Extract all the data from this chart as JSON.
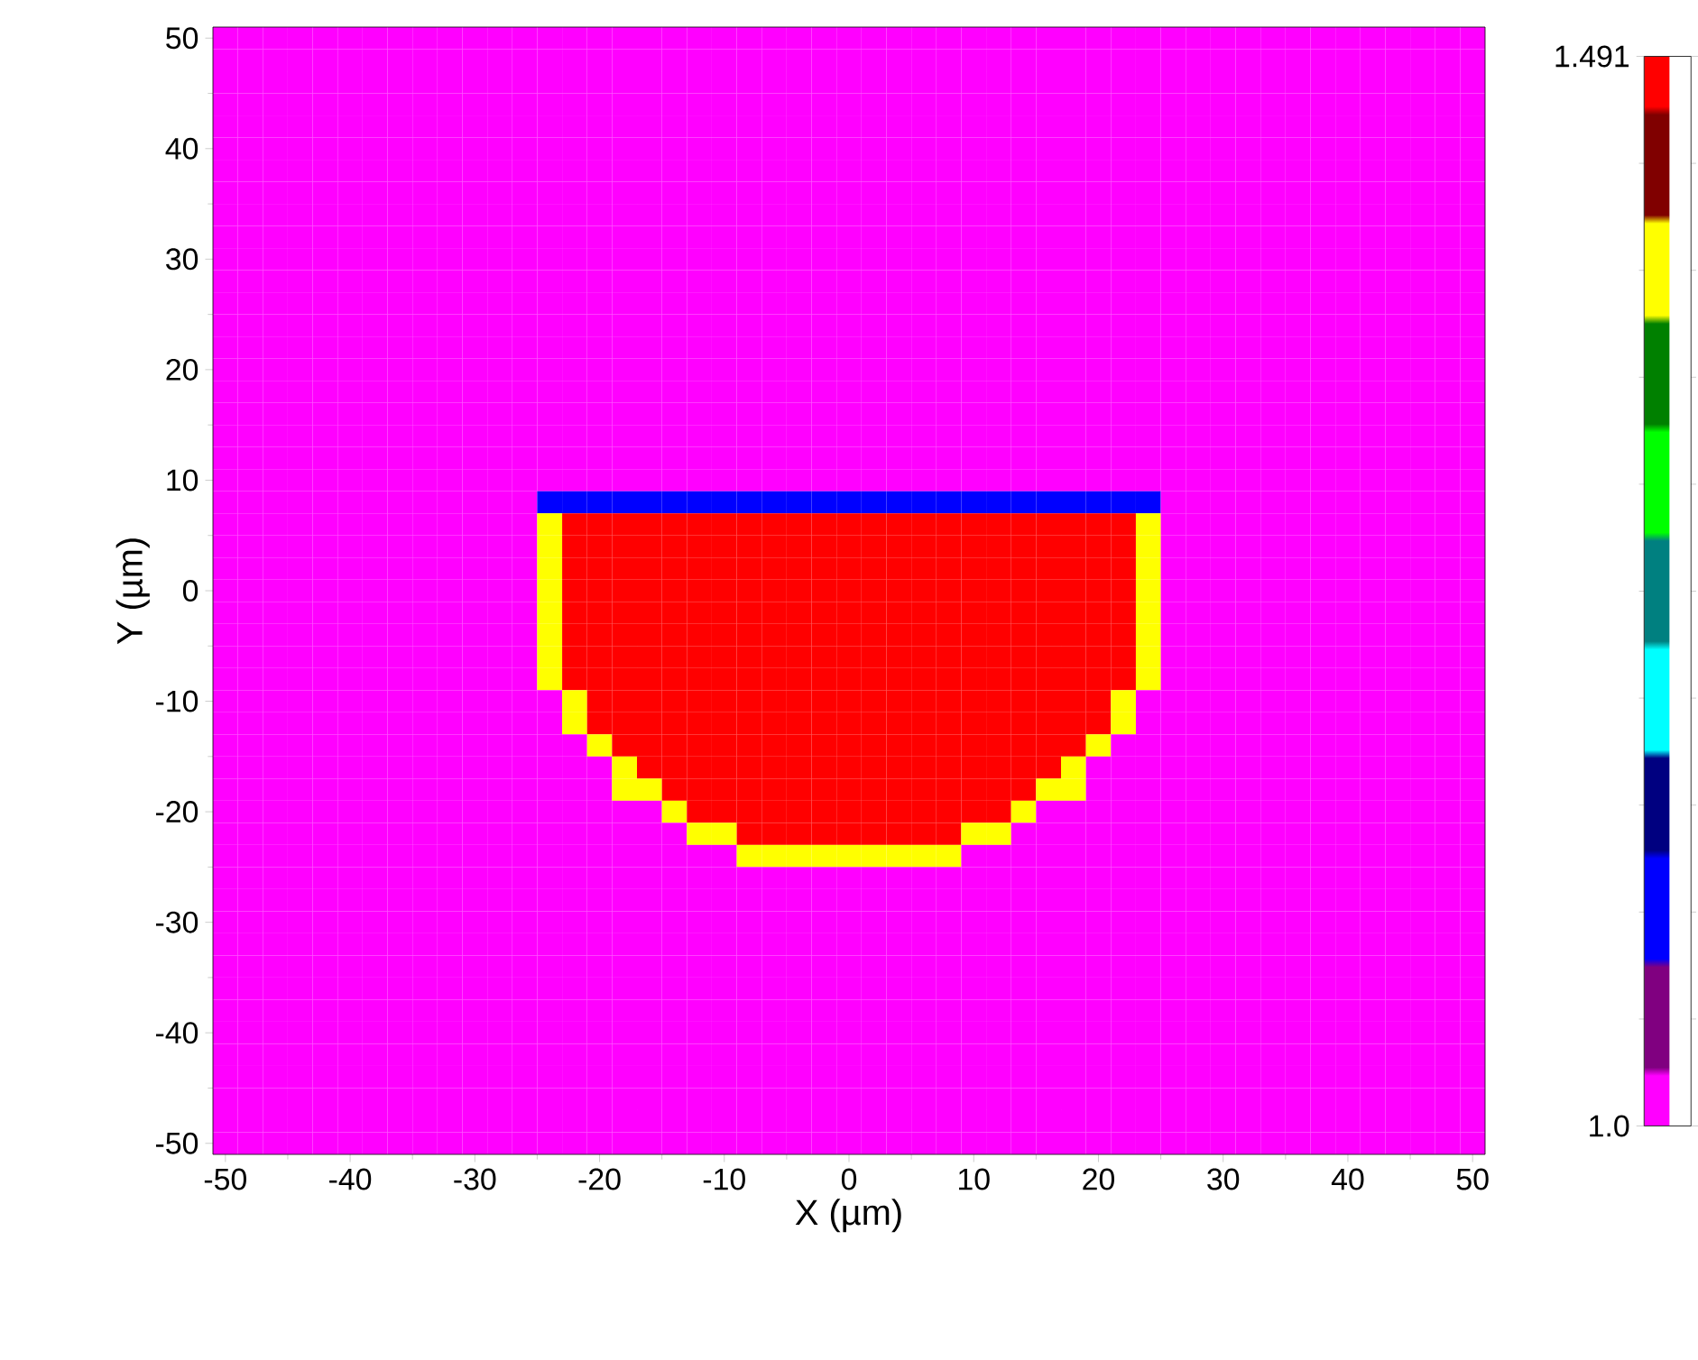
{
  "chart_data": {
    "type": "heatmap",
    "xlabel": "X (µm)",
    "ylabel": "Y (µm)",
    "clim": [
      1.0,
      1.491
    ],
    "cticks": [
      {
        "value": 1.0,
        "label": "1.0"
      },
      1.491
    ],
    "categories": [
      "-50",
      null,
      null,
      null,
      null,
      "-40",
      null,
      null,
      null,
      null,
      "-30",
      null,
      null,
      null,
      null,
      "-20",
      null,
      null,
      null,
      null,
      "-10",
      null,
      null,
      null,
      null,
      "0",
      null,
      null,
      null,
      null,
      "10",
      null,
      null,
      null,
      null,
      "20",
      null,
      null,
      null,
      null,
      "30",
      null,
      null,
      null,
      null,
      "40",
      null,
      null,
      null,
      null,
      "50"
    ],
    "y_categories": [
      "50",
      null,
      null,
      null,
      null,
      "40",
      null,
      null,
      null,
      null,
      "30",
      null,
      null,
      null,
      null,
      "20",
      null,
      null,
      null,
      null,
      "10",
      null,
      null,
      null,
      null,
      "0",
      null,
      null,
      null,
      null,
      "-10",
      null,
      null,
      null,
      null,
      "-20",
      null,
      null,
      null,
      null,
      "-30",
      null,
      null,
      null,
      null,
      "-40",
      null,
      null,
      null,
      null,
      "-50"
    ],
    "cells": [
      [
        1,
        1,
        1,
        1,
        1,
        1,
        1,
        1,
        1,
        1,
        1,
        1,
        1,
        1,
        1,
        1,
        1,
        1,
        1,
        1,
        1,
        1,
        1,
        1,
        1,
        1,
        1,
        1,
        1,
        1,
        1,
        1,
        1,
        1,
        1,
        1,
        1,
        1,
        1,
        1,
        1,
        1,
        1,
        1,
        1,
        1,
        1,
        1,
        1,
        1,
        1
      ],
      [
        1,
        1,
        1,
        1,
        1,
        1,
        1,
        1,
        1,
        1,
        1,
        1,
        1,
        1,
        1,
        1,
        1,
        1,
        1,
        1,
        1,
        1,
        1,
        1,
        1,
        1,
        1,
        1,
        1,
        1,
        1,
        1,
        1,
        1,
        1,
        1,
        1,
        1,
        1,
        1,
        1,
        1,
        1,
        1,
        1,
        1,
        1,
        1,
        1,
        1,
        1
      ],
      [
        1,
        1,
        1,
        1,
        1,
        1,
        1,
        1,
        1,
        1,
        1,
        1,
        1,
        1,
        1,
        1,
        1,
        1,
        1,
        1,
        1,
        1,
        1,
        1,
        1,
        1,
        1,
        1,
        1,
        1,
        1,
        1,
        1,
        1,
        1,
        1,
        1,
        1,
        1,
        1,
        1,
        1,
        1,
        1,
        1,
        1,
        1,
        1,
        1,
        1,
        1
      ],
      [
        1,
        1,
        1,
        1,
        1,
        1,
        1,
        1,
        1,
        1,
        1,
        1,
        1,
        1,
        1,
        1,
        1,
        1,
        1,
        1,
        1,
        1,
        1,
        1,
        1,
        1,
        1,
        1,
        1,
        1,
        1,
        1,
        1,
        1,
        1,
        1,
        1,
        1,
        1,
        1,
        1,
        1,
        1,
        1,
        1,
        1,
        1,
        1,
        1,
        1,
        1
      ],
      [
        1,
        1,
        1,
        1,
        1,
        1,
        1,
        1,
        1,
        1,
        1,
        1,
        1,
        1,
        1,
        1,
        1,
        1,
        1,
        1,
        1,
        1,
        1,
        1,
        1,
        1,
        1,
        1,
        1,
        1,
        1,
        1,
        1,
        1,
        1,
        1,
        1,
        1,
        1,
        1,
        1,
        1,
        1,
        1,
        1,
        1,
        1,
        1,
        1,
        1,
        1
      ],
      [
        1,
        1,
        1,
        1,
        1,
        1,
        1,
        1,
        1,
        1,
        1,
        1,
        1,
        1,
        1,
        1,
        1,
        1,
        1,
        1,
        1,
        1,
        1,
        1,
        1,
        1,
        1,
        1,
        1,
        1,
        1,
        1,
        1,
        1,
        1,
        1,
        1,
        1,
        1,
        1,
        1,
        1,
        1,
        1,
        1,
        1,
        1,
        1,
        1,
        1,
        1
      ],
      [
        1,
        1,
        1,
        1,
        1,
        1,
        1,
        1,
        1,
        1,
        1,
        1,
        1,
        1,
        1,
        1,
        1,
        1,
        1,
        1,
        1,
        1,
        1,
        1,
        1,
        1,
        1,
        1,
        1,
        1,
        1,
        1,
        1,
        1,
        1,
        1,
        1,
        1,
        1,
        1,
        1,
        1,
        1,
        1,
        1,
        1,
        1,
        1,
        1,
        1,
        1
      ],
      [
        1,
        1,
        1,
        1,
        1,
        1,
        1,
        1,
        1,
        1,
        1,
        1,
        1,
        1,
        1,
        1,
        1,
        1,
        1,
        1,
        1,
        1,
        1,
        1,
        1,
        1,
        1,
        1,
        1,
        1,
        1,
        1,
        1,
        1,
        1,
        1,
        1,
        1,
        1,
        1,
        1,
        1,
        1,
        1,
        1,
        1,
        1,
        1,
        1,
        1,
        1
      ],
      [
        1,
        1,
        1,
        1,
        1,
        1,
        1,
        1,
        1,
        1,
        1,
        1,
        1,
        1,
        1,
        1,
        1,
        1,
        1,
        1,
        1,
        1,
        1,
        1,
        1,
        1,
        1,
        1,
        1,
        1,
        1,
        1,
        1,
        1,
        1,
        1,
        1,
        1,
        1,
        1,
        1,
        1,
        1,
        1,
        1,
        1,
        1,
        1,
        1,
        1,
        1
      ],
      [
        1,
        1,
        1,
        1,
        1,
        1,
        1,
        1,
        1,
        1,
        1,
        1,
        1,
        1,
        1,
        1,
        1,
        1,
        1,
        1,
        1,
        1,
        1,
        1,
        1,
        1,
        1,
        1,
        1,
        1,
        1,
        1,
        1,
        1,
        1,
        1,
        1,
        1,
        1,
        1,
        1,
        1,
        1,
        1,
        1,
        1,
        1,
        1,
        1,
        1,
        1
      ],
      [
        1,
        1,
        1,
        1,
        1,
        1,
        1,
        1,
        1,
        1,
        1,
        1,
        1,
        1,
        1,
        1,
        1,
        1,
        1,
        1,
        1,
        1,
        1,
        1,
        1,
        1,
        1,
        1,
        1,
        1,
        1,
        1,
        1,
        1,
        1,
        1,
        1,
        1,
        1,
        1,
        1,
        1,
        1,
        1,
        1,
        1,
        1,
        1,
        1,
        1,
        1
      ],
      [
        1,
        1,
        1,
        1,
        1,
        1,
        1,
        1,
        1,
        1,
        1,
        1,
        1,
        1,
        1,
        1,
        1,
        1,
        1,
        1,
        1,
        1,
        1,
        1,
        1,
        1,
        1,
        1,
        1,
        1,
        1,
        1,
        1,
        1,
        1,
        1,
        1,
        1,
        1,
        1,
        1,
        1,
        1,
        1,
        1,
        1,
        1,
        1,
        1,
        1,
        1
      ],
      [
        1,
        1,
        1,
        1,
        1,
        1,
        1,
        1,
        1,
        1,
        1,
        1,
        1,
        1,
        1,
        1,
        1,
        1,
        1,
        1,
        1,
        1,
        1,
        1,
        1,
        1,
        1,
        1,
        1,
        1,
        1,
        1,
        1,
        1,
        1,
        1,
        1,
        1,
        1,
        1,
        1,
        1,
        1,
        1,
        1,
        1,
        1,
        1,
        1,
        1,
        1
      ],
      [
        1,
        1,
        1,
        1,
        1,
        1,
        1,
        1,
        1,
        1,
        1,
        1,
        1,
        1,
        1,
        1,
        1,
        1,
        1,
        1,
        1,
        1,
        1,
        1,
        1,
        1,
        1,
        1,
        1,
        1,
        1,
        1,
        1,
        1,
        1,
        1,
        1,
        1,
        1,
        1,
        1,
        1,
        1,
        1,
        1,
        1,
        1,
        1,
        1,
        1,
        1
      ],
      [
        1,
        1,
        1,
        1,
        1,
        1,
        1,
        1,
        1,
        1,
        1,
        1,
        1,
        1,
        1,
        1,
        1,
        1,
        1,
        1,
        1,
        1,
        1,
        1,
        1,
        1,
        1,
        1,
        1,
        1,
        1,
        1,
        1,
        1,
        1,
        1,
        1,
        1,
        1,
        1,
        1,
        1,
        1,
        1,
        1,
        1,
        1,
        1,
        1,
        1,
        1
      ],
      [
        1,
        1,
        1,
        1,
        1,
        1,
        1,
        1,
        1,
        1,
        1,
        1,
        1,
        1,
        1,
        1,
        1,
        1,
        1,
        1,
        1,
        1,
        1,
        1,
        1,
        1,
        1,
        1,
        1,
        1,
        1,
        1,
        1,
        1,
        1,
        1,
        1,
        1,
        1,
        1,
        1,
        1,
        1,
        1,
        1,
        1,
        1,
        1,
        1,
        1,
        1
      ],
      [
        1,
        1,
        1,
        1,
        1,
        1,
        1,
        1,
        1,
        1,
        1,
        1,
        1,
        1,
        1,
        1,
        1,
        1,
        1,
        1,
        1,
        1,
        1,
        1,
        1,
        1,
        1,
        1,
        1,
        1,
        1,
        1,
        1,
        1,
        1,
        1,
        1,
        1,
        1,
        1,
        1,
        1,
        1,
        1,
        1,
        1,
        1,
        1,
        1,
        1,
        1
      ],
      [
        1,
        1,
        1,
        1,
        1,
        1,
        1,
        1,
        1,
        1,
        1,
        1,
        1,
        1,
        1,
        1,
        1,
        1,
        1,
        1,
        1,
        1,
        1,
        1,
        1,
        1,
        1,
        1,
        1,
        1,
        1,
        1,
        1,
        1,
        1,
        1,
        1,
        1,
        1,
        1,
        1,
        1,
        1,
        1,
        1,
        1,
        1,
        1,
        1,
        1,
        1
      ],
      [
        1,
        1,
        1,
        1,
        1,
        1,
        1,
        1,
        1,
        1,
        1,
        1,
        1,
        1,
        1,
        1,
        1,
        1,
        1,
        1,
        1,
        1,
        1,
        1,
        1,
        1,
        1,
        1,
        1,
        1,
        1,
        1,
        1,
        1,
        1,
        1,
        1,
        1,
        1,
        1,
        1,
        1,
        1,
        1,
        1,
        1,
        1,
        1,
        1,
        1,
        1
      ],
      [
        1,
        1,
        1,
        1,
        1,
        1,
        1,
        1,
        1,
        1,
        1,
        1,
        1,
        1,
        1,
        1,
        1,
        1,
        1,
        1,
        1,
        1,
        1,
        1,
        1,
        1,
        1,
        1,
        1,
        1,
        1,
        1,
        1,
        1,
        1,
        1,
        1,
        1,
        1,
        1,
        1,
        1,
        1,
        1,
        1,
        1,
        1,
        1,
        1,
        1,
        1
      ],
      [
        1,
        1,
        1,
        1,
        1,
        1,
        1,
        1,
        1,
        1,
        1,
        1,
        1,
        1,
        1,
        1,
        1,
        1,
        1,
        1,
        1,
        1,
        1,
        1,
        1,
        1,
        1,
        1,
        1,
        1,
        1,
        1,
        1,
        1,
        1,
        1,
        1,
        1,
        1,
        1,
        1,
        1,
        1,
        1,
        1,
        1,
        1,
        1,
        1,
        1,
        1
      ],
      [
        1,
        1,
        1,
        1,
        1,
        1,
        1,
        1,
        1,
        1,
        1,
        1,
        1,
        1.1,
        1.1,
        1.1,
        1.1,
        1.1,
        1.1,
        1.1,
        1.1,
        1.1,
        1.1,
        1.1,
        1.1,
        1.1,
        1.1,
        1.1,
        1.1,
        1.1,
        1.1,
        1.1,
        1.1,
        1.1,
        1.1,
        1.1,
        1.1,
        1.1,
        1,
        1,
        1,
        1,
        1,
        1,
        1,
        1,
        1,
        1,
        1,
        1,
        1
      ],
      [
        1,
        1,
        1,
        1,
        1,
        1,
        1,
        1,
        1,
        1,
        1,
        1,
        1,
        1.39,
        1.491,
        1.491,
        1.491,
        1.491,
        1.491,
        1.491,
        1.491,
        1.491,
        1.491,
        1.491,
        1.491,
        1.491,
        1.491,
        1.491,
        1.491,
        1.491,
        1.491,
        1.491,
        1.491,
        1.491,
        1.491,
        1.491,
        1.491,
        1.39,
        1,
        1,
        1,
        1,
        1,
        1,
        1,
        1,
        1,
        1,
        1,
        1,
        1
      ],
      [
        1,
        1,
        1,
        1,
        1,
        1,
        1,
        1,
        1,
        1,
        1,
        1,
        1,
        1.39,
        1.491,
        1.491,
        1.491,
        1.491,
        1.491,
        1.491,
        1.491,
        1.491,
        1.491,
        1.491,
        1.491,
        1.491,
        1.491,
        1.491,
        1.491,
        1.491,
        1.491,
        1.491,
        1.491,
        1.491,
        1.491,
        1.491,
        1.491,
        1.39,
        1,
        1,
        1,
        1,
        1,
        1,
        1,
        1,
        1,
        1,
        1,
        1,
        1
      ],
      [
        1,
        1,
        1,
        1,
        1,
        1,
        1,
        1,
        1,
        1,
        1,
        1,
        1,
        1.39,
        1.491,
        1.491,
        1.491,
        1.491,
        1.491,
        1.491,
        1.491,
        1.491,
        1.491,
        1.491,
        1.491,
        1.491,
        1.491,
        1.491,
        1.491,
        1.491,
        1.491,
        1.491,
        1.491,
        1.491,
        1.491,
        1.491,
        1.491,
        1.39,
        1,
        1,
        1,
        1,
        1,
        1,
        1,
        1,
        1,
        1,
        1,
        1,
        1
      ],
      [
        1,
        1,
        1,
        1,
        1,
        1,
        1,
        1,
        1,
        1,
        1,
        1,
        1,
        1.39,
        1.491,
        1.491,
        1.491,
        1.491,
        1.491,
        1.491,
        1.491,
        1.491,
        1.491,
        1.491,
        1.491,
        1.491,
        1.491,
        1.491,
        1.491,
        1.491,
        1.491,
        1.491,
        1.491,
        1.491,
        1.491,
        1.491,
        1.491,
        1.39,
        1,
        1,
        1,
        1,
        1,
        1,
        1,
        1,
        1,
        1,
        1,
        1,
        1
      ],
      [
        1,
        1,
        1,
        1,
        1,
        1,
        1,
        1,
        1,
        1,
        1,
        1,
        1,
        1.39,
        1.491,
        1.491,
        1.491,
        1.491,
        1.491,
        1.491,
        1.491,
        1.491,
        1.491,
        1.491,
        1.491,
        1.491,
        1.491,
        1.491,
        1.491,
        1.491,
        1.491,
        1.491,
        1.491,
        1.491,
        1.491,
        1.491,
        1.491,
        1.39,
        1,
        1,
        1,
        1,
        1,
        1,
        1,
        1,
        1,
        1,
        1,
        1,
        1
      ],
      [
        1,
        1,
        1,
        1,
        1,
        1,
        1,
        1,
        1,
        1,
        1,
        1,
        1,
        1.39,
        1.491,
        1.491,
        1.491,
        1.491,
        1.491,
        1.491,
        1.491,
        1.491,
        1.491,
        1.491,
        1.491,
        1.491,
        1.491,
        1.491,
        1.491,
        1.491,
        1.491,
        1.491,
        1.491,
        1.491,
        1.491,
        1.491,
        1.491,
        1.39,
        1,
        1,
        1,
        1,
        1,
        1,
        1,
        1,
        1,
        1,
        1,
        1,
        1
      ],
      [
        1,
        1,
        1,
        1,
        1,
        1,
        1,
        1,
        1,
        1,
        1,
        1,
        1,
        1.39,
        1.491,
        1.491,
        1.491,
        1.491,
        1.491,
        1.491,
        1.491,
        1.491,
        1.491,
        1.491,
        1.491,
        1.491,
        1.491,
        1.491,
        1.491,
        1.491,
        1.491,
        1.491,
        1.491,
        1.491,
        1.491,
        1.491,
        1.491,
        1.39,
        1,
        1,
        1,
        1,
        1,
        1,
        1,
        1,
        1,
        1,
        1,
        1,
        1
      ],
      [
        1,
        1,
        1,
        1,
        1,
        1,
        1,
        1,
        1,
        1,
        1,
        1,
        1,
        1.39,
        1.491,
        1.491,
        1.491,
        1.491,
        1.491,
        1.491,
        1.491,
        1.491,
        1.491,
        1.491,
        1.491,
        1.491,
        1.491,
        1.491,
        1.491,
        1.491,
        1.491,
        1.491,
        1.491,
        1.491,
        1.491,
        1.491,
        1.491,
        1.39,
        1,
        1,
        1,
        1,
        1,
        1,
        1,
        1,
        1,
        1,
        1,
        1,
        1
      ],
      [
        1,
        1,
        1,
        1,
        1,
        1,
        1,
        1,
        1,
        1,
        1,
        1,
        1,
        1,
        1.39,
        1.491,
        1.491,
        1.491,
        1.491,
        1.491,
        1.491,
        1.491,
        1.491,
        1.491,
        1.491,
        1.491,
        1.491,
        1.491,
        1.491,
        1.491,
        1.491,
        1.491,
        1.491,
        1.491,
        1.491,
        1.491,
        1.39,
        1,
        1,
        1,
        1,
        1,
        1,
        1,
        1,
        1,
        1,
        1,
        1,
        1,
        1
      ],
      [
        1,
        1,
        1,
        1,
        1,
        1,
        1,
        1,
        1,
        1,
        1,
        1,
        1,
        1,
        1.39,
        1.491,
        1.491,
        1.491,
        1.491,
        1.491,
        1.491,
        1.491,
        1.491,
        1.491,
        1.491,
        1.491,
        1.491,
        1.491,
        1.491,
        1.491,
        1.491,
        1.491,
        1.491,
        1.491,
        1.491,
        1.491,
        1.39,
        1,
        1,
        1,
        1,
        1,
        1,
        1,
        1,
        1,
        1,
        1,
        1,
        1,
        1
      ],
      [
        1,
        1,
        1,
        1,
        1,
        1,
        1,
        1,
        1,
        1,
        1,
        1,
        1,
        1,
        1,
        1.39,
        1.491,
        1.491,
        1.491,
        1.491,
        1.491,
        1.491,
        1.491,
        1.491,
        1.491,
        1.491,
        1.491,
        1.491,
        1.491,
        1.491,
        1.491,
        1.491,
        1.491,
        1.491,
        1.491,
        1.39,
        1,
        1,
        1,
        1,
        1,
        1,
        1,
        1,
        1,
        1,
        1,
        1,
        1,
        1,
        1
      ],
      [
        1,
        1,
        1,
        1,
        1,
        1,
        1,
        1,
        1,
        1,
        1,
        1,
        1,
        1,
        1,
        1,
        1.39,
        1.491,
        1.491,
        1.491,
        1.491,
        1.491,
        1.491,
        1.491,
        1.491,
        1.491,
        1.491,
        1.491,
        1.491,
        1.491,
        1.491,
        1.491,
        1.491,
        1.491,
        1.39,
        1,
        1,
        1,
        1,
        1,
        1,
        1,
        1,
        1,
        1,
        1,
        1,
        1,
        1,
        1,
        1
      ],
      [
        1,
        1,
        1,
        1,
        1,
        1,
        1,
        1,
        1,
        1,
        1,
        1,
        1,
        1,
        1,
        1,
        1.39,
        1.39,
        1.491,
        1.491,
        1.491,
        1.491,
        1.491,
        1.491,
        1.491,
        1.491,
        1.491,
        1.491,
        1.491,
        1.491,
        1.491,
        1.491,
        1.491,
        1.39,
        1.39,
        1,
        1,
        1,
        1,
        1,
        1,
        1,
        1,
        1,
        1,
        1,
        1,
        1,
        1,
        1,
        1
      ],
      [
        1,
        1,
        1,
        1,
        1,
        1,
        1,
        1,
        1,
        1,
        1,
        1,
        1,
        1,
        1,
        1,
        1,
        1,
        1.39,
        1.491,
        1.491,
        1.491,
        1.491,
        1.491,
        1.491,
        1.491,
        1.491,
        1.491,
        1.491,
        1.491,
        1.491,
        1.491,
        1.39,
        1,
        1,
        1,
        1,
        1,
        1,
        1,
        1,
        1,
        1,
        1,
        1,
        1,
        1,
        1,
        1,
        1,
        1
      ],
      [
        1,
        1,
        1,
        1,
        1,
        1,
        1,
        1,
        1,
        1,
        1,
        1,
        1,
        1,
        1,
        1,
        1,
        1,
        1,
        1.39,
        1.39,
        1.491,
        1.491,
        1.491,
        1.491,
        1.491,
        1.491,
        1.491,
        1.491,
        1.491,
        1.39,
        1.39,
        1,
        1,
        1,
        1,
        1,
        1,
        1,
        1,
        1,
        1,
        1,
        1,
        1,
        1,
        1,
        1,
        1,
        1,
        1
      ],
      [
        1,
        1,
        1,
        1,
        1,
        1,
        1,
        1,
        1,
        1,
        1,
        1,
        1,
        1,
        1,
        1,
        1,
        1,
        1,
        1,
        1,
        1.39,
        1.39,
        1.39,
        1.39,
        1.39,
        1.39,
        1.39,
        1.39,
        1.39,
        1,
        1,
        1,
        1,
        1,
        1,
        1,
        1,
        1,
        1,
        1,
        1,
        1,
        1,
        1,
        1,
        1,
        1,
        1,
        1,
        1
      ],
      [
        1,
        1,
        1,
        1,
        1,
        1,
        1,
        1,
        1,
        1,
        1,
        1,
        1,
        1,
        1,
        1,
        1,
        1,
        1,
        1,
        1,
        1,
        1,
        1,
        1,
        1,
        1,
        1,
        1,
        1,
        1,
        1,
        1,
        1,
        1,
        1,
        1,
        1,
        1,
        1,
        1,
        1,
        1,
        1,
        1,
        1,
        1,
        1,
        1,
        1,
        1
      ],
      [
        1,
        1,
        1,
        1,
        1,
        1,
        1,
        1,
        1,
        1,
        1,
        1,
        1,
        1,
        1,
        1,
        1,
        1,
        1,
        1,
        1,
        1,
        1,
        1,
        1,
        1,
        1,
        1,
        1,
        1,
        1,
        1,
        1,
        1,
        1,
        1,
        1,
        1,
        1,
        1,
        1,
        1,
        1,
        1,
        1,
        1,
        1,
        1,
        1,
        1,
        1
      ],
      [
        1,
        1,
        1,
        1,
        1,
        1,
        1,
        1,
        1,
        1,
        1,
        1,
        1,
        1,
        1,
        1,
        1,
        1,
        1,
        1,
        1,
        1,
        1,
        1,
        1,
        1,
        1,
        1,
        1,
        1,
        1,
        1,
        1,
        1,
        1,
        1,
        1,
        1,
        1,
        1,
        1,
        1,
        1,
        1,
        1,
        1,
        1,
        1,
        1,
        1,
        1
      ],
      [
        1,
        1,
        1,
        1,
        1,
        1,
        1,
        1,
        1,
        1,
        1,
        1,
        1,
        1,
        1,
        1,
        1,
        1,
        1,
        1,
        1,
        1,
        1,
        1,
        1,
        1,
        1,
        1,
        1,
        1,
        1,
        1,
        1,
        1,
        1,
        1,
        1,
        1,
        1,
        1,
        1,
        1,
        1,
        1,
        1,
        1,
        1,
        1,
        1,
        1,
        1
      ],
      [
        1,
        1,
        1,
        1,
        1,
        1,
        1,
        1,
        1,
        1,
        1,
        1,
        1,
        1,
        1,
        1,
        1,
        1,
        1,
        1,
        1,
        1,
        1,
        1,
        1,
        1,
        1,
        1,
        1,
        1,
        1,
        1,
        1,
        1,
        1,
        1,
        1,
        1,
        1,
        1,
        1,
        1,
        1,
        1,
        1,
        1,
        1,
        1,
        1,
        1,
        1
      ],
      [
        1,
        1,
        1,
        1,
        1,
        1,
        1,
        1,
        1,
        1,
        1,
        1,
        1,
        1,
        1,
        1,
        1,
        1,
        1,
        1,
        1,
        1,
        1,
        1,
        1,
        1,
        1,
        1,
        1,
        1,
        1,
        1,
        1,
        1,
        1,
        1,
        1,
        1,
        1,
        1,
        1,
        1,
        1,
        1,
        1,
        1,
        1,
        1,
        1,
        1,
        1
      ],
      [
        1,
        1,
        1,
        1,
        1,
        1,
        1,
        1,
        1,
        1,
        1,
        1,
        1,
        1,
        1,
        1,
        1,
        1,
        1,
        1,
        1,
        1,
        1,
        1,
        1,
        1,
        1,
        1,
        1,
        1,
        1,
        1,
        1,
        1,
        1,
        1,
        1,
        1,
        1,
        1,
        1,
        1,
        1,
        1,
        1,
        1,
        1,
        1,
        1,
        1,
        1
      ],
      [
        1,
        1,
        1,
        1,
        1,
        1,
        1,
        1,
        1,
        1,
        1,
        1,
        1,
        1,
        1,
        1,
        1,
        1,
        1,
        1,
        1,
        1,
        1,
        1,
        1,
        1,
        1,
        1,
        1,
        1,
        1,
        1,
        1,
        1,
        1,
        1,
        1,
        1,
        1,
        1,
        1,
        1,
        1,
        1,
        1,
        1,
        1,
        1,
        1,
        1,
        1
      ],
      [
        1,
        1,
        1,
        1,
        1,
        1,
        1,
        1,
        1,
        1,
        1,
        1,
        1,
        1,
        1,
        1,
        1,
        1,
        1,
        1,
        1,
        1,
        1,
        1,
        1,
        1,
        1,
        1,
        1,
        1,
        1,
        1,
        1,
        1,
        1,
        1,
        1,
        1,
        1,
        1,
        1,
        1,
        1,
        1,
        1,
        1,
        1,
        1,
        1,
        1,
        1
      ],
      [
        1,
        1,
        1,
        1,
        1,
        1,
        1,
        1,
        1,
        1,
        1,
        1,
        1,
        1,
        1,
        1,
        1,
        1,
        1,
        1,
        1,
        1,
        1,
        1,
        1,
        1,
        1,
        1,
        1,
        1,
        1,
        1,
        1,
        1,
        1,
        1,
        1,
        1,
        1,
        1,
        1,
        1,
        1,
        1,
        1,
        1,
        1,
        1,
        1,
        1,
        1
      ],
      [
        1,
        1,
        1,
        1,
        1,
        1,
        1,
        1,
        1,
        1,
        1,
        1,
        1,
        1,
        1,
        1,
        1,
        1,
        1,
        1,
        1,
        1,
        1,
        1,
        1,
        1,
        1,
        1,
        1,
        1,
        1,
        1,
        1,
        1,
        1,
        1,
        1,
        1,
        1,
        1,
        1,
        1,
        1,
        1,
        1,
        1,
        1,
        1,
        1,
        1,
        1
      ],
      [
        1,
        1,
        1,
        1,
        1,
        1,
        1,
        1,
        1,
        1,
        1,
        1,
        1,
        1,
        1,
        1,
        1,
        1,
        1,
        1,
        1,
        1,
        1,
        1,
        1,
        1,
        1,
        1,
        1,
        1,
        1,
        1,
        1,
        1,
        1,
        1,
        1,
        1,
        1,
        1,
        1,
        1,
        1,
        1,
        1,
        1,
        1,
        1,
        1,
        1,
        1
      ],
      [
        1,
        1,
        1,
        1,
        1,
        1,
        1,
        1,
        1,
        1,
        1,
        1,
        1,
        1,
        1,
        1,
        1,
        1,
        1,
        1,
        1,
        1,
        1,
        1,
        1,
        1,
        1,
        1,
        1,
        1,
        1,
        1,
        1,
        1,
        1,
        1,
        1,
        1,
        1,
        1,
        1,
        1,
        1,
        1,
        1,
        1,
        1,
        1,
        1,
        1,
        1
      ]
    ]
  }
}
